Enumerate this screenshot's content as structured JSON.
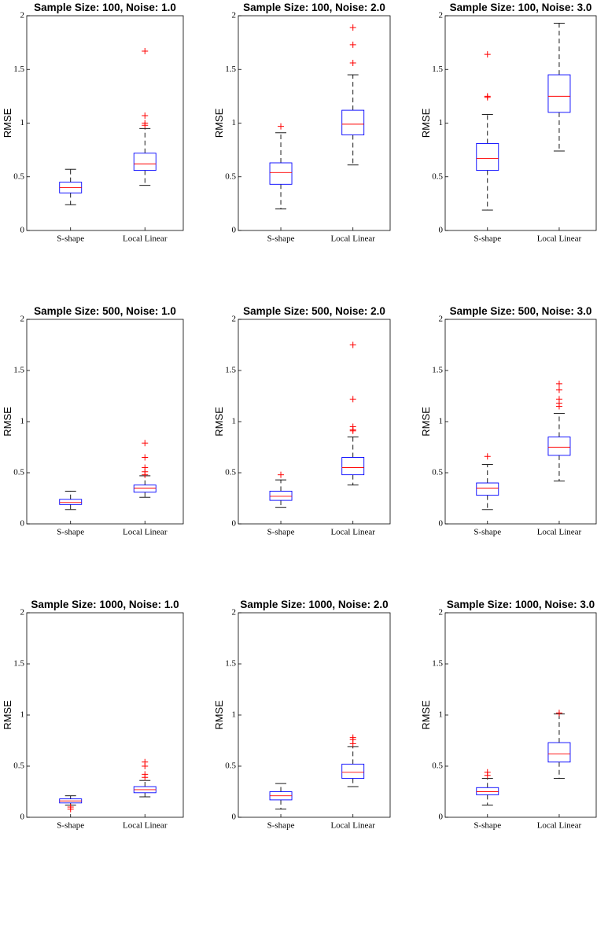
{
  "chart_data": [
    {
      "type": "box",
      "title": "Sample Size: 100, Noise: 1.0",
      "ylabel": "RMSE",
      "categories": [
        "S-shape",
        "Local Linear"
      ],
      "ylim": [
        0,
        2
      ],
      "yticks": [
        0,
        0.5,
        1,
        1.5,
        2
      ],
      "box_color": "#0000ff",
      "median_color": "#ff0000",
      "whisker_color": "#000000",
      "outlier_color": "#ff0000",
      "boxes": [
        {
          "whisker_low": 0.24,
          "q1": 0.35,
          "median": 0.4,
          "q3": 0.45,
          "whisker_high": 0.57,
          "outliers": []
        },
        {
          "whisker_low": 0.42,
          "q1": 0.56,
          "median": 0.62,
          "q3": 0.72,
          "whisker_high": 0.95,
          "outliers": [
            1.67,
            1.07,
            1.0,
            0.98
          ]
        }
      ]
    },
    {
      "type": "box",
      "title": "Sample Size: 100, Noise: 2.0",
      "ylabel": "RMSE",
      "categories": [
        "S-shape",
        "Local Linear"
      ],
      "ylim": [
        0,
        2
      ],
      "yticks": [
        0,
        0.5,
        1,
        1.5,
        2
      ],
      "box_color": "#0000ff",
      "median_color": "#ff0000",
      "whisker_color": "#000000",
      "outlier_color": "#ff0000",
      "boxes": [
        {
          "whisker_low": 0.2,
          "q1": 0.43,
          "median": 0.54,
          "q3": 0.63,
          "whisker_high": 0.91,
          "outliers": [
            0.97
          ]
        },
        {
          "whisker_low": 0.61,
          "q1": 0.89,
          "median": 0.99,
          "q3": 1.12,
          "whisker_high": 1.45,
          "outliers": [
            1.89,
            1.73,
            1.56
          ]
        }
      ]
    },
    {
      "type": "box",
      "title": "Sample Size: 100, Noise: 3.0",
      "ylabel": "RMSE",
      "categories": [
        "S-shape",
        "Local Linear"
      ],
      "ylim": [
        0,
        2
      ],
      "yticks": [
        0,
        0.5,
        1,
        1.5,
        2
      ],
      "box_color": "#0000ff",
      "median_color": "#ff0000",
      "whisker_color": "#000000",
      "outlier_color": "#ff0000",
      "boxes": [
        {
          "whisker_low": 0.19,
          "q1": 0.56,
          "median": 0.67,
          "q3": 0.81,
          "whisker_high": 1.08,
          "outliers": [
            1.64,
            1.25,
            1.24
          ]
        },
        {
          "whisker_low": 0.74,
          "q1": 1.1,
          "median": 1.25,
          "q3": 1.45,
          "whisker_high": 1.93,
          "outliers": []
        }
      ]
    },
    {
      "type": "box",
      "title": "Sample Size: 500, Noise: 1.0",
      "ylabel": "RMSE",
      "categories": [
        "S-shape",
        "Local Linear"
      ],
      "ylim": [
        0,
        2
      ],
      "yticks": [
        0,
        0.5,
        1,
        1.5,
        2
      ],
      "box_color": "#0000ff",
      "median_color": "#ff0000",
      "whisker_color": "#000000",
      "outlier_color": "#ff0000",
      "boxes": [
        {
          "whisker_low": 0.14,
          "q1": 0.19,
          "median": 0.21,
          "q3": 0.24,
          "whisker_high": 0.32,
          "outliers": []
        },
        {
          "whisker_low": 0.26,
          "q1": 0.31,
          "median": 0.35,
          "q3": 0.38,
          "whisker_high": 0.47,
          "outliers": [
            0.79,
            0.65,
            0.55,
            0.51,
            0.48
          ]
        }
      ]
    },
    {
      "type": "box",
      "title": "Sample Size: 500, Noise: 2.0",
      "ylabel": "RMSE",
      "categories": [
        "S-shape",
        "Local Linear"
      ],
      "ylim": [
        0,
        2
      ],
      "yticks": [
        0,
        0.5,
        1,
        1.5,
        2
      ],
      "box_color": "#0000ff",
      "median_color": "#ff0000",
      "whisker_color": "#000000",
      "outlier_color": "#ff0000",
      "boxes": [
        {
          "whisker_low": 0.16,
          "q1": 0.23,
          "median": 0.27,
          "q3": 0.32,
          "whisker_high": 0.43,
          "outliers": [
            0.48
          ]
        },
        {
          "whisker_low": 0.38,
          "q1": 0.48,
          "median": 0.55,
          "q3": 0.65,
          "whisker_high": 0.85,
          "outliers": [
            1.75,
            1.22,
            0.95,
            0.92,
            0.91
          ]
        }
      ]
    },
    {
      "type": "box",
      "title": "Sample Size: 500, Noise: 3.0",
      "ylabel": "RMSE",
      "categories": [
        "S-shape",
        "Local Linear"
      ],
      "ylim": [
        0,
        2
      ],
      "yticks": [
        0,
        0.5,
        1,
        1.5,
        2
      ],
      "box_color": "#0000ff",
      "median_color": "#ff0000",
      "whisker_color": "#000000",
      "outlier_color": "#ff0000",
      "boxes": [
        {
          "whisker_low": 0.14,
          "q1": 0.28,
          "median": 0.35,
          "q3": 0.4,
          "whisker_high": 0.58,
          "outliers": [
            0.66
          ]
        },
        {
          "whisker_low": 0.42,
          "q1": 0.67,
          "median": 0.75,
          "q3": 0.85,
          "whisker_high": 1.08,
          "outliers": [
            1.37,
            1.31,
            1.22,
            1.18,
            1.15
          ]
        }
      ]
    },
    {
      "type": "box",
      "title": "Sample Size: 1000, Noise: 1.0",
      "ylabel": "RMSE",
      "categories": [
        "S-shape",
        "Local Linear"
      ],
      "ylim": [
        0,
        2
      ],
      "yticks": [
        0,
        0.5,
        1,
        1.5,
        2
      ],
      "box_color": "#0000ff",
      "median_color": "#ff0000",
      "whisker_color": "#000000",
      "outlier_color": "#ff0000",
      "boxes": [
        {
          "whisker_low": 0.12,
          "q1": 0.14,
          "median": 0.16,
          "q3": 0.18,
          "whisker_high": 0.21,
          "outliers": [
            0.1,
            0.08
          ]
        },
        {
          "whisker_low": 0.2,
          "q1": 0.24,
          "median": 0.27,
          "q3": 0.3,
          "whisker_high": 0.36,
          "outliers": [
            0.54,
            0.5,
            0.42,
            0.39
          ]
        }
      ]
    },
    {
      "type": "box",
      "title": "Sample Size: 1000, Noise: 2.0",
      "ylabel": "RMSE",
      "categories": [
        "S-shape",
        "Local Linear"
      ],
      "ylim": [
        0,
        2
      ],
      "yticks": [
        0,
        0.5,
        1,
        1.5,
        2
      ],
      "box_color": "#0000ff",
      "median_color": "#ff0000",
      "whisker_color": "#000000",
      "outlier_color": "#ff0000",
      "boxes": [
        {
          "whisker_low": 0.08,
          "q1": 0.17,
          "median": 0.21,
          "q3": 0.25,
          "whisker_high": 0.33,
          "outliers": []
        },
        {
          "whisker_low": 0.3,
          "q1": 0.38,
          "median": 0.44,
          "q3": 0.52,
          "whisker_high": 0.69,
          "outliers": [
            0.78,
            0.76,
            0.72
          ]
        }
      ]
    },
    {
      "type": "box",
      "title": "Sample Size: 1000, Noise: 3.0",
      "ylabel": "RMSE",
      "categories": [
        "S-shape",
        "Local Linear"
      ],
      "ylim": [
        0,
        2
      ],
      "yticks": [
        0,
        0.5,
        1,
        1.5,
        2
      ],
      "box_color": "#0000ff",
      "median_color": "#ff0000",
      "whisker_color": "#000000",
      "outlier_color": "#ff0000",
      "boxes": [
        {
          "whisker_low": 0.12,
          "q1": 0.22,
          "median": 0.25,
          "q3": 0.29,
          "whisker_high": 0.38,
          "outliers": [
            0.44,
            0.41
          ]
        },
        {
          "whisker_low": 0.38,
          "q1": 0.54,
          "median": 0.62,
          "q3": 0.73,
          "whisker_high": 1.01,
          "outliers": [
            1.02
          ]
        }
      ]
    }
  ]
}
